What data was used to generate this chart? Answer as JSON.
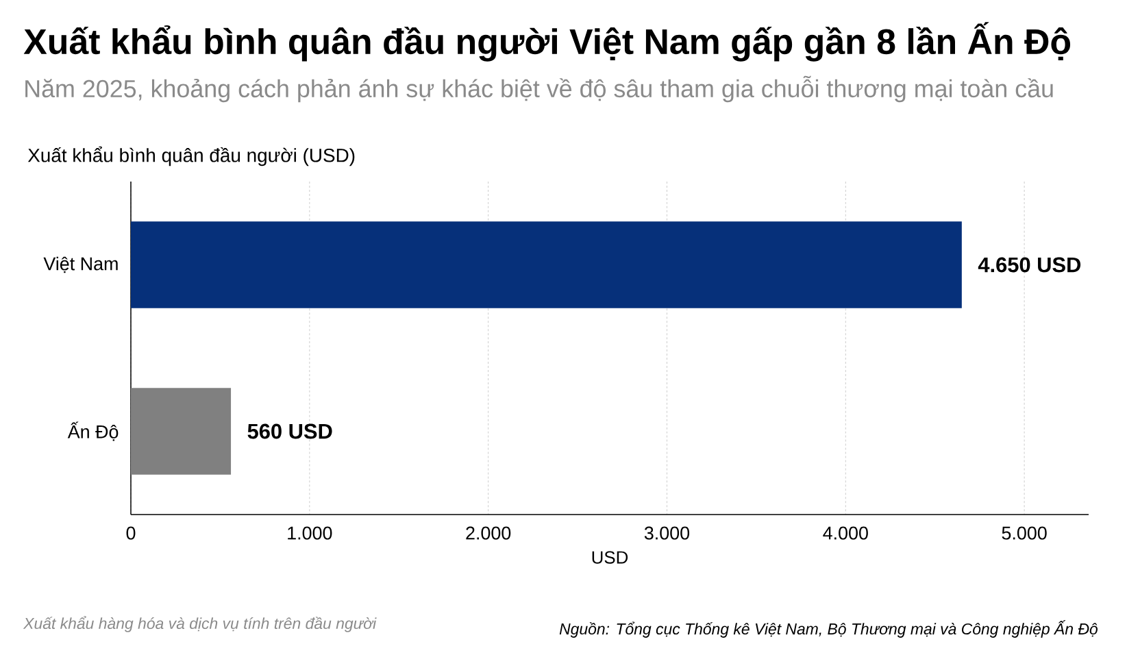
{
  "chart_data": {
    "type": "bar",
    "orientation": "horizontal",
    "title": "Xuất khẩu bình quân đầu người Việt Nam gấp gần 8 lần Ấn Độ",
    "subtitle": "Năm 2025, khoảng cách phản ánh sự khác biệt về độ sâu tham gia chuỗi thương mại toàn cầu",
    "ylabel": "Xuất khẩu bình quân đầu người (USD)",
    "xlabel": "USD",
    "categories": [
      "Việt Nam",
      "Ấn Độ"
    ],
    "values": [
      4650,
      560
    ],
    "colors": [
      "#06307a",
      "#808080"
    ],
    "value_labels": [
      "4.650 USD",
      "560 USD"
    ],
    "xlim": [
      0,
      5360
    ],
    "xticks": [
      0,
      {
        "value": 1000,
        "label": "1.000"
      },
      {
        "value": 2000,
        "label": "2.000"
      },
      {
        "value": 3000,
        "label": "3.000"
      },
      {
        "value": 4000,
        "label": "4.000"
      },
      {
        "value": 5000,
        "label": "5.000"
      }
    ],
    "grid": "x",
    "annotations": [
      "Xuất khẩu hàng hóa và dịch vụ tính trên đầu người",
      "Nguồn: Tổng cục Thống kê Việt Nam, Bộ Thương mại và Công nghiệp Ấn Độ"
    ]
  }
}
